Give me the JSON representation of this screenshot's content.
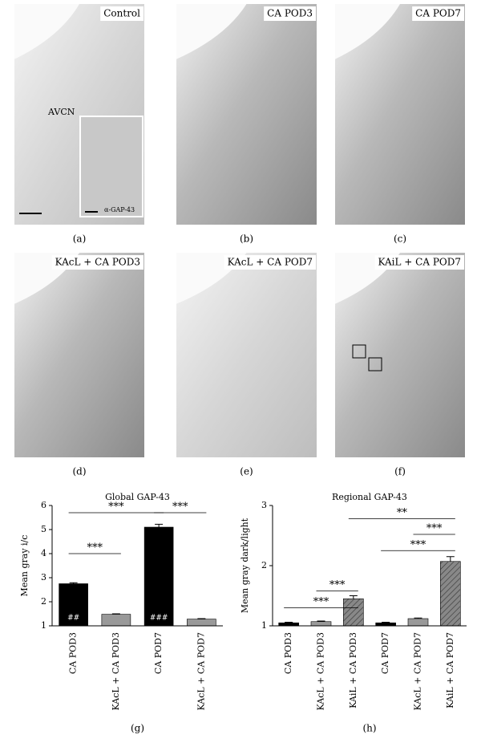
{
  "panels": [
    {
      "label": "Control",
      "caption": "(a)",
      "notes": [
        "AVCN",
        "α-GAP-43"
      ]
    },
    {
      "label": "CA POD3",
      "caption": "(b)"
    },
    {
      "label": "CA POD7",
      "caption": "(c)"
    },
    {
      "label": "KAcL + CA POD3",
      "caption": "(d)"
    },
    {
      "label": "KAcL + CA POD7",
      "caption": "(e)"
    },
    {
      "label": "KAiL + CA POD7",
      "caption": "(f)"
    }
  ],
  "chart_data": [
    {
      "type": "bar",
      "title": "Global GAP-43",
      "ylabel": "Mean gray i/c",
      "caption": "(g)",
      "categories": [
        "CA POD3",
        "KAcL + CA POD3",
        "CA POD7",
        "KAcL + CA POD7"
      ],
      "values": [
        2.75,
        1.48,
        5.1,
        1.28
      ],
      "errors": [
        0.04,
        0.02,
        0.12,
        0.02
      ],
      "colors": [
        "#000000",
        "#999999",
        "#000000",
        "#999999"
      ],
      "hatch": [
        false,
        false,
        false,
        false
      ],
      "bar_annotations": [
        "##",
        null,
        "###",
        null
      ],
      "comparisons": [
        {
          "from": 0,
          "to": 1,
          "y": 4.0,
          "label": "***"
        },
        {
          "from": 0,
          "to": 2,
          "y": 5.7,
          "label": "***"
        },
        {
          "from": 2,
          "to": 3,
          "y": 5.7,
          "label": "***"
        }
      ],
      "ylim": [
        1,
        6
      ],
      "yticks": [
        1,
        2,
        3,
        4,
        5,
        6
      ]
    },
    {
      "type": "bar",
      "title": "Regional GAP-43",
      "ylabel": "Mean gray dark/light",
      "caption": "(h)",
      "categories": [
        "CA POD3",
        "KAcL + CA POD3",
        "KAiL + CA POD3",
        "CA POD7",
        "KAcL + CA POD7",
        "KAiL + CA POD7"
      ],
      "values": [
        1.05,
        1.07,
        1.45,
        1.05,
        1.12,
        2.07
      ],
      "errors": [
        0.01,
        0.01,
        0.05,
        0.01,
        0.01,
        0.08
      ],
      "colors": [
        "#000000",
        "#999999",
        "#888888",
        "#000000",
        "#999999",
        "#888888"
      ],
      "hatch": [
        false,
        false,
        true,
        false,
        false,
        true
      ],
      "comparisons": [
        {
          "from": 0,
          "to": 2,
          "y": 1.3,
          "label": "***"
        },
        {
          "from": 1,
          "to": 2,
          "y": 1.58,
          "label": "***"
        },
        {
          "from": 3,
          "to": 5,
          "y": 2.25,
          "label": "***"
        },
        {
          "from": 4,
          "to": 5,
          "y": 2.52,
          "label": "***"
        },
        {
          "from": 2,
          "to": 5,
          "y": 2.78,
          "label": "**"
        }
      ],
      "ylim": [
        1,
        3
      ],
      "yticks": [
        1,
        2,
        3
      ]
    }
  ]
}
